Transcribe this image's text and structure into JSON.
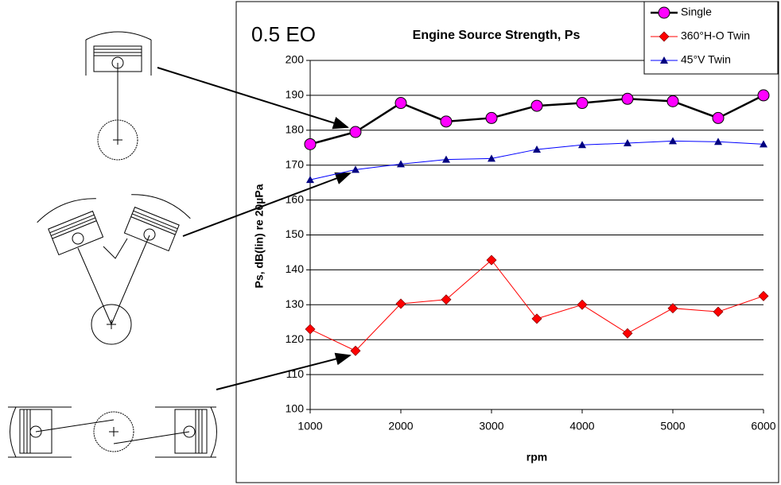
{
  "chart_data": {
    "type": "line",
    "title": "Engine Source Strength, Ps",
    "annotation": "0.5 EO",
    "x_label": "rpm",
    "y_label": "Ps, dB(lin) re 20µPa",
    "x": [
      1000,
      1500,
      2000,
      2500,
      3000,
      3500,
      4000,
      4500,
      5000,
      5500,
      6000
    ],
    "xlim": [
      1000,
      6000
    ],
    "xticks": [
      1000,
      2000,
      3000,
      4000,
      5000,
      6000
    ],
    "ylim": [
      100,
      200
    ],
    "yticks": [
      100,
      110,
      120,
      130,
      140,
      150,
      160,
      170,
      180,
      190,
      200
    ],
    "grid": true,
    "legend": "top-right",
    "series": [
      {
        "name": "Single",
        "color": "#ff00ff",
        "line_color": "#000000",
        "marker": "circle",
        "values": [
          176,
          179.5,
          187.8,
          182.5,
          183.5,
          187,
          187.8,
          189,
          188.3,
          183.5,
          190
        ]
      },
      {
        "name": "360°H-O Twin",
        "color": "#ff0000",
        "line_color": "#ff0000",
        "marker": "diamond",
        "values": [
          123,
          116.8,
          130.3,
          131.5,
          142.8,
          126,
          130,
          121.8,
          129,
          128,
          132.5
        ]
      },
      {
        "name": "45°V Twin",
        "color": "#000080",
        "line_color": "#0000ff",
        "marker": "triangle",
        "values": [
          165.8,
          168.7,
          170.3,
          171.6,
          171.9,
          174.5,
          175.8,
          176.3,
          176.9,
          176.7,
          176
        ]
      }
    ]
  }
}
